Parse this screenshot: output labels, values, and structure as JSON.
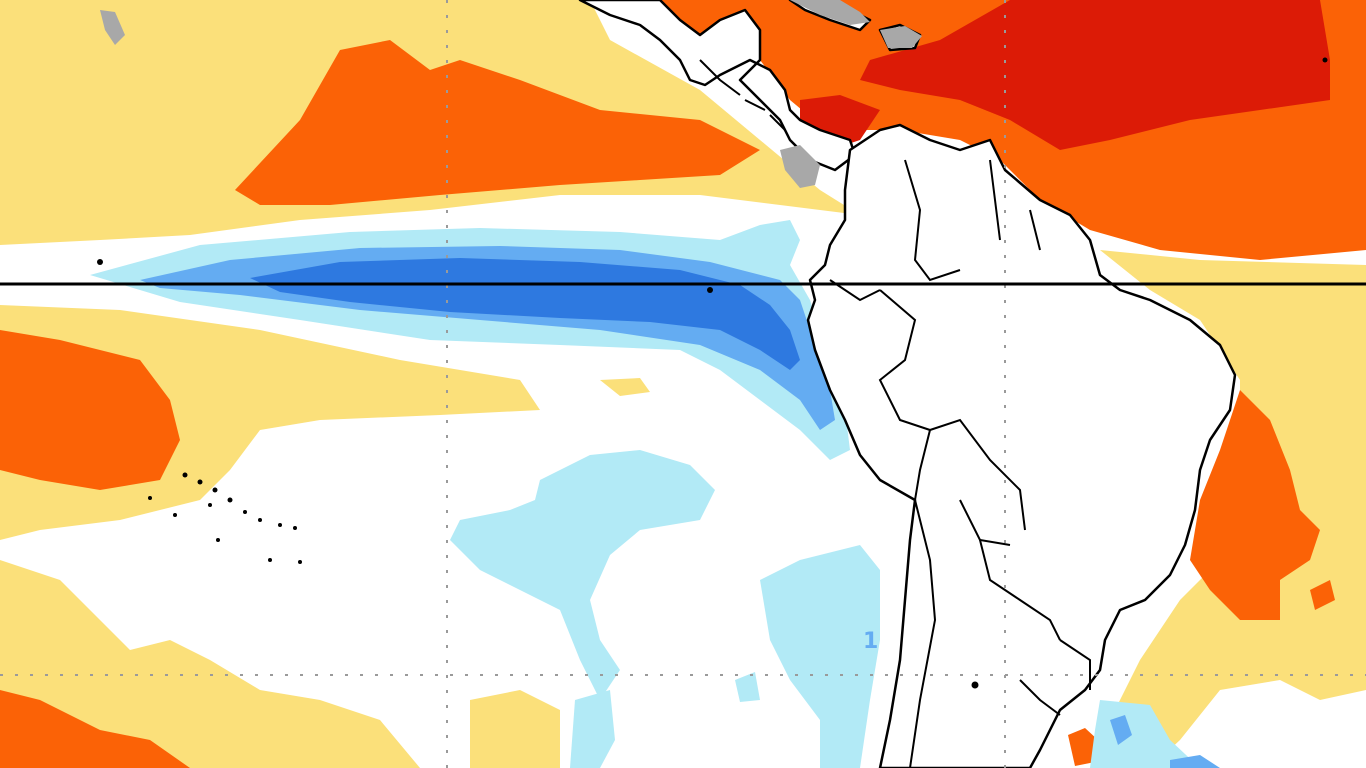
{
  "colors": {
    "ocean_neutral": "#ffffff",
    "warm_weak": "#fbe07a",
    "warm_moderate": "#fb6206",
    "warm_strong": "#dc1b06",
    "cold_weak": "#b2eaf6",
    "cold_moderate": "#64acf2",
    "cold_strong": "#2e79e0",
    "land": "#ffffff",
    "land_masked": "#a8a8a8",
    "coastline": "#000000",
    "gridline": "#9a9a9a"
  },
  "contour_label": "1"
}
